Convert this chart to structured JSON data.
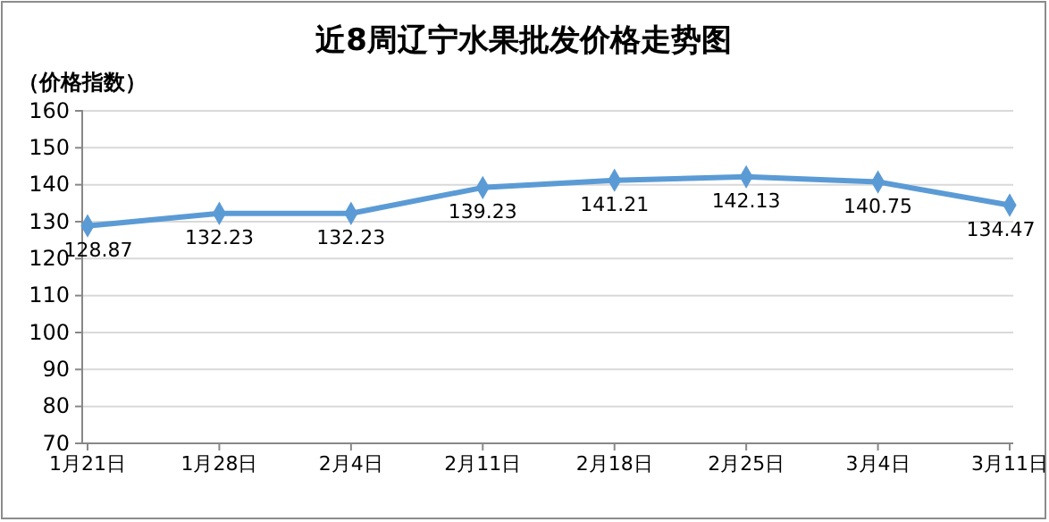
{
  "chart_data": {
    "type": "line",
    "title": "近8周辽宁水果批发价格走势图",
    "ylabel": "（价格指数）",
    "categories": [
      "1月21日",
      "1月28日",
      "2月4日",
      "2月11日",
      "2月18日",
      "2月25日",
      "3月4日",
      "3月11日"
    ],
    "series": [
      {
        "color": "#5b9bd5",
        "values": [
          128.87,
          132.23,
          132.23,
          139.23,
          141.21,
          142.13,
          140.75,
          134.47
        ]
      }
    ],
    "ylim": [
      70,
      160
    ],
    "yticks": [
      70,
      80,
      90,
      100,
      110,
      120,
      130,
      140,
      150,
      160
    ],
    "grid": "y",
    "marker": "diamond",
    "line_style": "solid",
    "data_labels": true
  }
}
